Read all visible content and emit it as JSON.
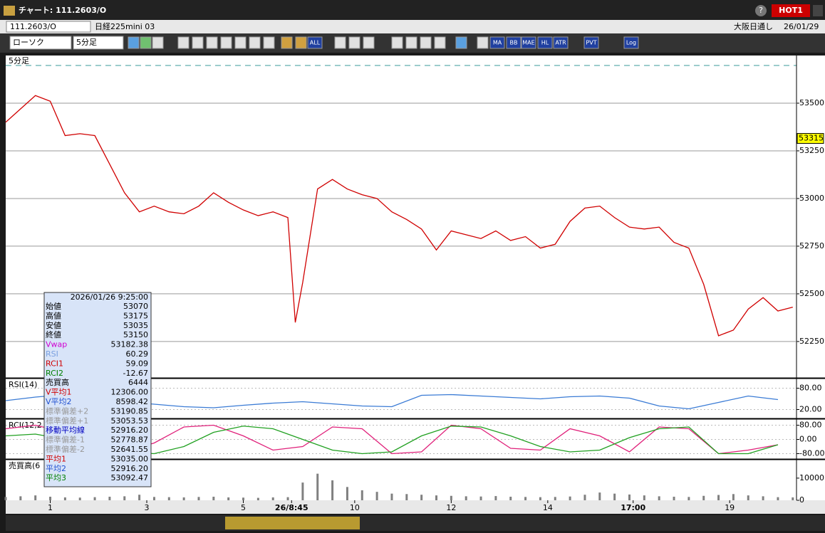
{
  "window": {
    "title": "チャート: 111.2603/O",
    "help": "?",
    "hot": "HOT1"
  },
  "symbol_bar": {
    "symbol": "111.2603/O",
    "name": "日経225mini 03",
    "market": "大阪日通し",
    "date": "26/01/29"
  },
  "toolbar": {
    "chart_type": "ローソク",
    "interval": "5分足",
    "buttons": [
      "ALL",
      "MA",
      "BB",
      "MAE",
      "HL",
      "ATR",
      "PVT",
      "Log"
    ]
  },
  "info_box": {
    "datetime": "2026/01/26 9:25:00",
    "rows": [
      {
        "label": "始値",
        "value": "53070",
        "color": "#000000"
      },
      {
        "label": "高値",
        "value": "53175",
        "color": "#000000"
      },
      {
        "label": "安値",
        "value": "53035",
        "color": "#000000"
      },
      {
        "label": "終値",
        "value": "53150",
        "color": "#000000"
      },
      {
        "label": "Vwap",
        "value": "53182.38",
        "color": "#d000d0"
      },
      {
        "label": "RSI",
        "value": "60.29",
        "color": "#7aa0e0"
      },
      {
        "label": "RCI1",
        "value": "59.09",
        "color": "#d00000"
      },
      {
        "label": "RCI2",
        "value": "-12.67",
        "color": "#008000"
      },
      {
        "label": "売買高",
        "value": "6444",
        "color": "#000000"
      },
      {
        "label": "V平均1",
        "value": "12306.00",
        "color": "#d00000"
      },
      {
        "label": "V平均2",
        "value": "8598.42",
        "color": "#2050d0"
      },
      {
        "label": "標準偏差+2",
        "value": "53190.85",
        "color": "#999999"
      },
      {
        "label": "標準偏差+1",
        "value": "53053.53",
        "color": "#999999"
      },
      {
        "label": "移動平均線",
        "value": "52916.20",
        "color": "#0000c0"
      },
      {
        "label": "標準偏差-1",
        "value": "52778.87",
        "color": "#999999"
      },
      {
        "label": "標準偏差-2",
        "value": "52641.55",
        "color": "#999999"
      },
      {
        "label": "平均1",
        "value": "53035.00",
        "color": "#d00000"
      },
      {
        "label": "平均2",
        "value": "52916.20",
        "color": "#2050d0"
      },
      {
        "label": "平均3",
        "value": "53092.47",
        "color": "#008000"
      }
    ]
  },
  "chart_data": [
    {
      "type": "line",
      "label": "5分足",
      "price_marker": 53315,
      "x": [
        0,
        4,
        8,
        12,
        16,
        20,
        24,
        28,
        32,
        36,
        40,
        44,
        48,
        52,
        56,
        60,
        64,
        68,
        72,
        76,
        78,
        80,
        84,
        88,
        92,
        96,
        100,
        104,
        108,
        112,
        116,
        120,
        124,
        128,
        132,
        136,
        140,
        144,
        148,
        152,
        156,
        160,
        164,
        168,
        172,
        176,
        180,
        184,
        188,
        192,
        196,
        200,
        204,
        208,
        212
      ],
      "xlim": [
        0,
        213
      ],
      "xticks": [
        {
          "value": 12,
          "label": "1"
        },
        {
          "value": 38,
          "label": "3"
        },
        {
          "value": 64,
          "label": "5"
        },
        {
          "value": 77,
          "label": "26/8:45"
        },
        {
          "value": 94,
          "label": "10"
        },
        {
          "value": 120,
          "label": "12"
        },
        {
          "value": 146,
          "label": "14"
        },
        {
          "value": 169,
          "label": "17:00"
        },
        {
          "value": 195,
          "label": "19"
        }
      ],
      "ylim": [
        52063,
        53750
      ],
      "yticks": [
        52250,
        52500,
        52750,
        53000,
        53250,
        53500
      ],
      "grid": true,
      "series": [
        {
          "color": "#d00000",
          "values": [
            53400,
            53470,
            53540,
            53510,
            53330,
            53340,
            53330,
            53180,
            53030,
            52930,
            52960,
            52930,
            52920,
            52960,
            53030,
            52980,
            52940,
            52910,
            52930,
            52900,
            52350,
            52560,
            53050,
            53100,
            53050,
            53020,
            53000,
            52930,
            52890,
            52840,
            52730,
            52830,
            52810,
            52790,
            52830,
            52780,
            52800,
            52740,
            52760,
            52880,
            52950,
            52960,
            52900,
            52850,
            52840,
            52850,
            52770,
            52740,
            52550,
            52280,
            52310,
            52420,
            52480,
            52410,
            52430
          ]
        }
      ]
    },
    {
      "type": "line",
      "label": "RSI(14)",
      "x": [
        0,
        8,
        16,
        24,
        32,
        40,
        48,
        56,
        64,
        72,
        80,
        88,
        96,
        104,
        112,
        120,
        128,
        136,
        144,
        152,
        160,
        168,
        176,
        184,
        192,
        200,
        208
      ],
      "xlim": [
        0,
        213
      ],
      "ylim": [
        -5,
        105
      ],
      "yticks": [
        {
          "value": 80,
          "label": "80.00"
        },
        {
          "value": 20,
          "label": "20.00"
        }
      ],
      "series": [
        {
          "color": "#3a7bd5",
          "values": [
            45,
            55,
            62,
            40,
            42,
            35,
            28,
            25,
            32,
            38,
            42,
            36,
            30,
            28,
            60,
            62,
            58,
            54,
            50,
            56,
            58,
            52,
            30,
            22,
            40,
            58,
            48
          ]
        }
      ]
    },
    {
      "type": "line",
      "label": "RCI(12,2",
      "x": [
        0,
        8,
        16,
        24,
        32,
        40,
        48,
        56,
        64,
        72,
        80,
        88,
        96,
        104,
        112,
        120,
        128,
        136,
        144,
        152,
        160,
        168,
        176,
        184,
        192,
        200,
        208
      ],
      "xlim": [
        0,
        213
      ],
      "ylim": [
        -110,
        110
      ],
      "yticks": [
        {
          "value": 80,
          "label": "80.00"
        },
        {
          "value": 0,
          "label": "0.00"
        },
        {
          "value": -80,
          "label": "-80.00"
        }
      ],
      "series": [
        {
          "color": "#e0207a",
          "values": [
            60,
            80,
            40,
            -60,
            -70,
            -20,
            70,
            80,
            20,
            -60,
            -40,
            70,
            60,
            -80,
            -70,
            80,
            60,
            -50,
            -60,
            60,
            20,
            -70,
            70,
            60,
            -80,
            -60,
            -30
          ]
        },
        {
          "color": "#20a020",
          "values": [
            20,
            30,
            0,
            -40,
            -70,
            -80,
            -40,
            40,
            75,
            60,
            0,
            -60,
            -80,
            -70,
            20,
            75,
            70,
            20,
            -40,
            -70,
            -60,
            10,
            60,
            70,
            -80,
            -80,
            -30
          ]
        }
      ]
    },
    {
      "type": "bar",
      "label": "売買高(6",
      "x": [
        0,
        4,
        8,
        12,
        16,
        20,
        24,
        28,
        32,
        36,
        40,
        44,
        48,
        52,
        56,
        60,
        64,
        68,
        72,
        76,
        80,
        84,
        88,
        92,
        96,
        100,
        104,
        108,
        112,
        116,
        120,
        124,
        128,
        132,
        136,
        140,
        144,
        148,
        152,
        156,
        160,
        164,
        168,
        172,
        176,
        180,
        184,
        188,
        192,
        196,
        200,
        204,
        208,
        212
      ],
      "xlim": [
        0,
        213
      ],
      "ylim": [
        0,
        18000
      ],
      "yticks": [
        0,
        10000
      ],
      "color": "#808080",
      "values": [
        1500,
        1800,
        2200,
        1600,
        1300,
        1200,
        1400,
        1600,
        1800,
        2500,
        1500,
        1400,
        1300,
        1500,
        1600,
        1300,
        1200,
        1100,
        1300,
        1400,
        8000,
        12000,
        9000,
        6000,
        4500,
        3800,
        3000,
        2800,
        2500,
        2200,
        2000,
        1800,
        1700,
        1900,
        1600,
        1500,
        1400,
        1500,
        1700,
        2500,
        3500,
        3000,
        2600,
        2200,
        1800,
        1600,
        1500,
        2000,
        2400,
        2800,
        2200,
        1800,
        1400,
        1300
      ]
    }
  ]
}
